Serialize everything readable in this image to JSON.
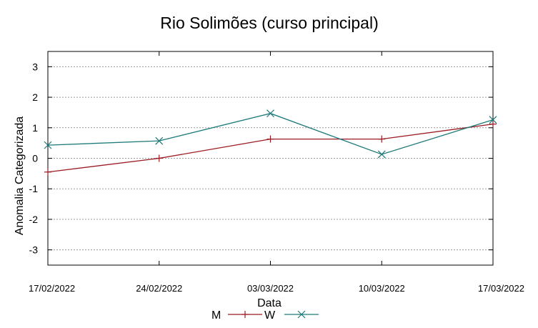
{
  "chart_data": {
    "type": "line",
    "title": "Rio Solimões (curso principal)",
    "xlabel": "Data",
    "ylabel": "Anomalia Categorizada",
    "x": [
      "17/02/2022",
      "24/02/2022",
      "03/03/2022",
      "10/03/2022",
      "17/03/2022"
    ],
    "ylim": [
      -3.5,
      3.5
    ],
    "yticks": [
      -3,
      -2,
      -1,
      0,
      1,
      2,
      3
    ],
    "grid": true,
    "legend_position": "bottom",
    "series": [
      {
        "name": "M",
        "values": [
          -0.45,
          0.0,
          0.63,
          0.63,
          1.12
        ],
        "color": "#9b1b22",
        "marker": "plus"
      },
      {
        "name": "W",
        "values": [
          0.43,
          0.57,
          1.47,
          0.13,
          1.26
        ],
        "color": "#1f7a7a",
        "marker": "cross"
      }
    ]
  }
}
